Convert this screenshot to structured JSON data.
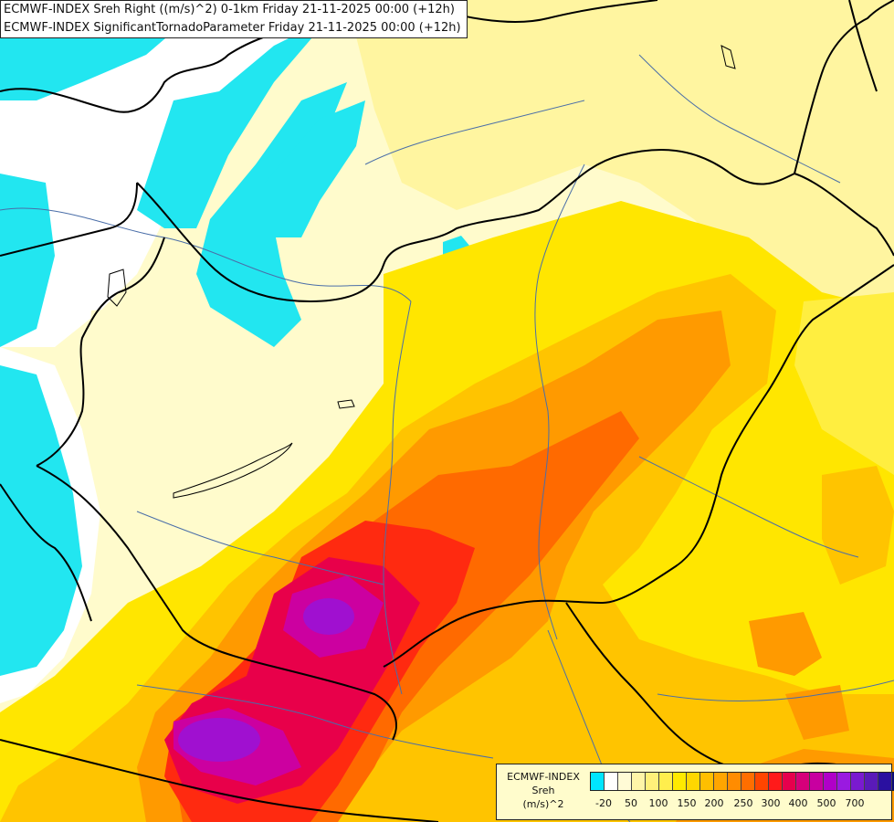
{
  "title": {
    "line1": "ECMWF-INDEX Sreh Right ((m/s)^2) 0-1km Friday 21-11-2025 00:00 (+12h)",
    "line2": "ECMWF-INDEX SignificantTornadoParameter Friday 21-11-2025 00:00 (+12h)"
  },
  "legend": {
    "line1": "ECMWF-INDEX",
    "line2": "Sreh",
    "line3": "(m/s)^2",
    "swatches": [
      "#00e5ff",
      "#ffffff",
      "#fffbd6",
      "#fff5a8",
      "#fff07a",
      "#ffee4d",
      "#ffea00",
      "#ffd700",
      "#ffbf00",
      "#ffa500",
      "#ff8c00",
      "#ff6e00",
      "#ff4500",
      "#ff1a1a",
      "#e6004d",
      "#d6007a",
      "#c800a0",
      "#b000c8",
      "#9a1ae0",
      "#7a1ad0",
      "#5a1ab8",
      "#2a10a0",
      "#0a0a78"
    ],
    "ticks": [
      "-20",
      "50",
      "100",
      "150",
      "200",
      "250",
      "300",
      "400",
      "500",
      "700"
    ]
  },
  "map": {
    "field_colors": {
      "cyan": "#22e6f0",
      "white": "#ffffff",
      "cream": "#fffbcc",
      "pale_yellow": "#fff5a0",
      "yellow": "#ffe600",
      "gold": "#ffc400",
      "orange": "#ff9a00",
      "dark_orange": "#ff6a00",
      "red": "#ff2a10",
      "crimson": "#e8004a",
      "magenta": "#cc00a0",
      "purple": "#a010d0"
    },
    "border_color": "#000000",
    "river_color": "#4a6ea8"
  }
}
